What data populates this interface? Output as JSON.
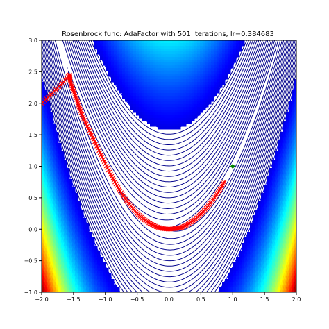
{
  "chart_data": {
    "type": "contour",
    "title": "Rosenbrock func: AdaFactor with 501 iterations, lr=0.384683",
    "xlabel": "",
    "ylabel": "",
    "xlim": [
      -2.0,
      2.0
    ],
    "ylim": [
      -1.0,
      3.0
    ],
    "x_ticks": [
      "−2.0",
      "−1.5",
      "−1.0",
      "−0.5",
      "0.0",
      "0.5",
      "1.0",
      "1.5",
      "2.0"
    ],
    "y_ticks": [
      "−1.0",
      "−0.5",
      "0.0",
      "0.5",
      "1.0",
      "1.5",
      "2.0",
      "2.5",
      "3.0"
    ],
    "x_tick_values": [
      -2.0,
      -1.5,
      -1.0,
      -0.5,
      0.0,
      0.5,
      1.0,
      1.5,
      2.0
    ],
    "y_tick_values": [
      -1.0,
      -0.5,
      0.0,
      0.5,
      1.0,
      1.5,
      2.0,
      2.5,
      3.0
    ],
    "grid": false,
    "contour": {
      "function": "rosenbrock",
      "colormap": "jet",
      "levels_min": 1,
      "levels_max": 2500
    },
    "optimizer_path": {
      "color": "#ff0000",
      "marker": "x",
      "points": [
        [
          -2.0,
          2.0
        ],
        [
          -1.85,
          2.14
        ],
        [
          -1.7,
          2.29
        ],
        [
          -1.56,
          2.45
        ],
        [
          -1.55,
          2.35
        ],
        [
          -1.5,
          2.2
        ],
        [
          -1.44,
          2.03
        ],
        [
          -1.38,
          1.85
        ],
        [
          -1.3,
          1.67
        ],
        [
          -1.2,
          1.46
        ],
        [
          -1.1,
          1.25
        ],
        [
          -1.0,
          1.04
        ],
        [
          -0.9,
          0.84
        ],
        [
          -0.8,
          0.66
        ],
        [
          -0.7,
          0.5
        ],
        [
          -0.6,
          0.37
        ],
        [
          -0.5,
          0.25
        ],
        [
          -0.4,
          0.16
        ],
        [
          -0.3,
          0.09
        ],
        [
          -0.2,
          0.04
        ],
        [
          -0.1,
          0.01
        ],
        [
          0.0,
          0.0
        ],
        [
          0.1,
          0.01
        ],
        [
          0.2,
          0.03
        ],
        [
          0.3,
          0.08
        ],
        [
          0.4,
          0.15
        ],
        [
          0.5,
          0.24
        ],
        [
          0.6,
          0.35
        ],
        [
          0.7,
          0.48
        ],
        [
          0.8,
          0.63
        ],
        [
          0.88,
          0.77
        ]
      ]
    },
    "minimum": {
      "x": 1.0,
      "y": 1.0,
      "color": "#008000",
      "marker": "D"
    }
  }
}
